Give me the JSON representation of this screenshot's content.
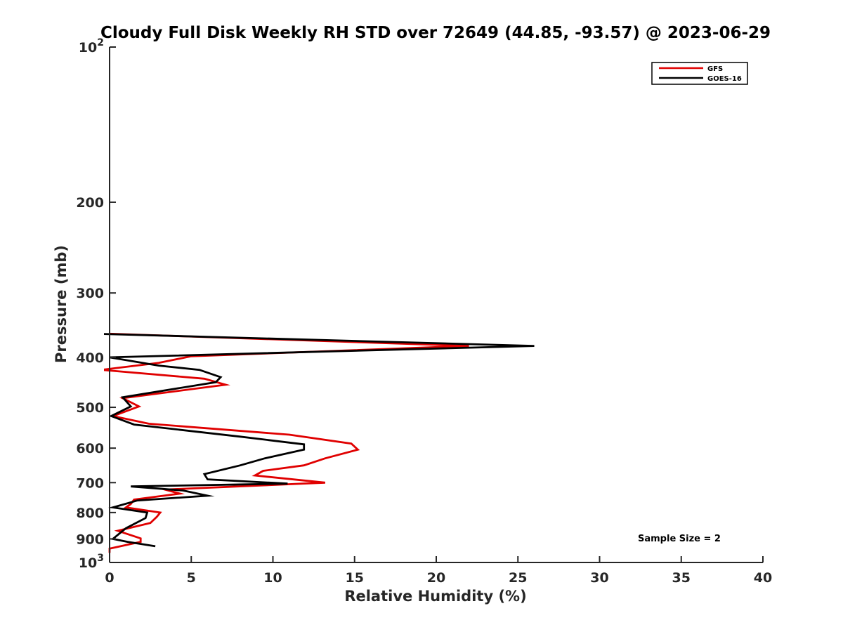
{
  "chart_data": {
    "type": "line",
    "title": "Cloudy Full Disk Weekly RH STD over 72649 (44.85, -93.57) @ 2023-06-29",
    "xlabel": "Relative Humidity (%)",
    "ylabel": "Pressure (mb)",
    "xlim": [
      0,
      40
    ],
    "ylim": [
      100,
      1000
    ],
    "yscale": "log",
    "y_reversed": true,
    "grid": false,
    "legend_position": "top-right",
    "xticks": [
      0,
      5,
      10,
      15,
      20,
      25,
      30,
      35,
      40
    ],
    "xtick_labels": [
      "0",
      "5",
      "10",
      "15",
      "20",
      "25",
      "30",
      "35",
      "40"
    ],
    "yticks": [
      100,
      200,
      300,
      400,
      500,
      600,
      700,
      800,
      900,
      1000
    ],
    "ytick_labels": [
      {
        "base": "10",
        "exp": "2"
      },
      {
        "base": "200",
        "exp": ""
      },
      {
        "base": "300",
        "exp": ""
      },
      {
        "base": "400",
        "exp": ""
      },
      {
        "base": "500",
        "exp": ""
      },
      {
        "base": "600",
        "exp": ""
      },
      {
        "base": "700",
        "exp": ""
      },
      {
        "base": "800",
        "exp": ""
      },
      {
        "base": "900",
        "exp": ""
      },
      {
        "base": "10",
        "exp": "3"
      }
    ],
    "annotation": "Sample Size = 2",
    "series": [
      {
        "name": "GFS",
        "color": "#e00000",
        "points": [
          [
            0.0,
            360
          ],
          [
            22.0,
            380
          ],
          [
            5.0,
            398
          ],
          [
            3.0,
            410
          ],
          [
            -0.5,
            423
          ],
          [
            5.8,
            440
          ],
          [
            7.1,
            452
          ],
          [
            0.8,
            480
          ],
          [
            1.8,
            498
          ],
          [
            0.2,
            520
          ],
          [
            2.4,
            538
          ],
          [
            11.0,
            565
          ],
          [
            14.8,
            588
          ],
          [
            15.2,
            604
          ],
          [
            13.2,
            628
          ],
          [
            11.9,
            648
          ],
          [
            9.4,
            664
          ],
          [
            8.9,
            678
          ],
          [
            13.2,
            700
          ],
          [
            3.4,
            722
          ],
          [
            4.3,
            735
          ],
          [
            1.5,
            755
          ],
          [
            1.3,
            770
          ],
          [
            1.0,
            782
          ],
          [
            3.1,
            800
          ],
          [
            2.9,
            815
          ],
          [
            2.5,
            838
          ],
          [
            0.5,
            868
          ],
          [
            1.9,
            898
          ],
          [
            1.9,
            912
          ],
          [
            0.0,
            940
          ],
          [
            0.0,
            958
          ]
        ]
      },
      {
        "name": "GOES-16",
        "color": "#000000",
        "points": [
          [
            -0.8,
            360
          ],
          [
            26.0,
            380
          ],
          [
            0.0,
            400
          ],
          [
            3.0,
            415
          ],
          [
            5.5,
            423
          ],
          [
            6.8,
            437
          ],
          [
            6.5,
            447
          ],
          [
            0.8,
            478
          ],
          [
            1.3,
            498
          ],
          [
            0.1,
            520
          ],
          [
            1.5,
            540
          ],
          [
            8.0,
            570
          ],
          [
            11.9,
            590
          ],
          [
            11.9,
            604
          ],
          [
            9.5,
            628
          ],
          [
            8.0,
            648
          ],
          [
            5.8,
            674
          ],
          [
            6.0,
            690
          ],
          [
            10.9,
            703
          ],
          [
            1.3,
            712
          ],
          [
            4.5,
            725
          ],
          [
            6.0,
            742
          ],
          [
            1.7,
            758
          ],
          [
            0.2,
            782
          ],
          [
            2.3,
            800
          ],
          [
            2.2,
            820
          ],
          [
            1.0,
            858
          ],
          [
            0.2,
            900
          ],
          [
            1.1,
            912
          ],
          [
            2.8,
            930
          ]
        ]
      }
    ]
  }
}
